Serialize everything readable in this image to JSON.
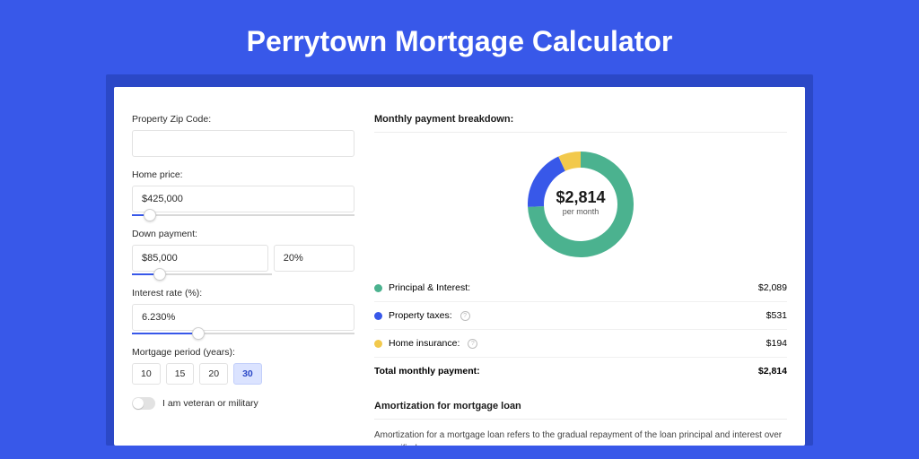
{
  "page": {
    "title": "Perrytown Mortgage Calculator",
    "bg_color": "#3858e9",
    "shadow_color": "#2b48c7",
    "card_bg": "#ffffff"
  },
  "form": {
    "zip": {
      "label": "Property Zip Code:",
      "value": ""
    },
    "home_price": {
      "label": "Home price:",
      "value": "$425,000",
      "slider_pct": 8
    },
    "down_payment": {
      "label": "Down payment:",
      "amount": "$85,000",
      "percent": "20%",
      "slider_pct": 20
    },
    "interest": {
      "label": "Interest rate (%):",
      "value": "6.230%",
      "slider_pct": 30
    },
    "period": {
      "label": "Mortgage period (years):",
      "options": [
        "10",
        "15",
        "20",
        "30"
      ],
      "selected": "30"
    },
    "veteran": {
      "label": "I am veteran or military",
      "on": false
    }
  },
  "breakdown": {
    "title": "Monthly payment breakdown:",
    "center_value": "$2,814",
    "center_sub": "per month",
    "donut": {
      "slices": [
        {
          "key": "pi",
          "value": 2089,
          "color": "#4bb28f"
        },
        {
          "key": "tax",
          "value": 531,
          "color": "#3858e9"
        },
        {
          "key": "ins",
          "value": 194,
          "color": "#f2c94c"
        }
      ],
      "total": 2814,
      "stroke_width": 18,
      "radius": 50
    },
    "rows": [
      {
        "label": "Principal & Interest:",
        "value": "$2,089",
        "color": "#4bb28f",
        "info": false
      },
      {
        "label": "Property taxes:",
        "value": "$531",
        "color": "#3858e9",
        "info": true
      },
      {
        "label": "Home insurance:",
        "value": "$194",
        "color": "#f2c94c",
        "info": true
      }
    ],
    "total": {
      "label": "Total monthly payment:",
      "value": "$2,814"
    }
  },
  "amortization": {
    "title": "Amortization for mortgage loan",
    "text": "Amortization for a mortgage loan refers to the gradual repayment of the loan principal and interest over a specified"
  }
}
